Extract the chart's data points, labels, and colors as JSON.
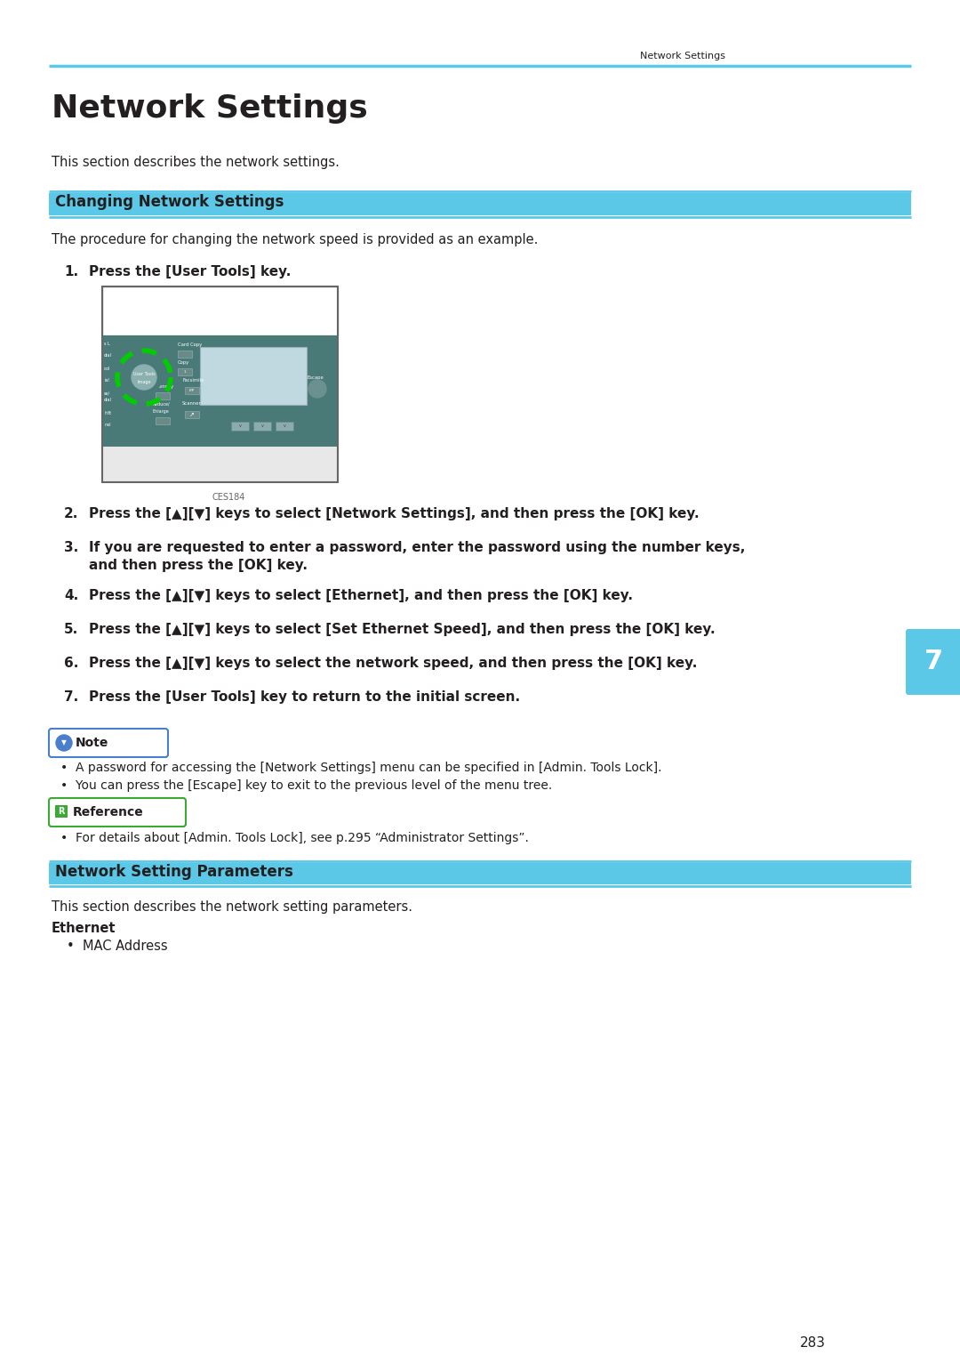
{
  "header_text": "Network Settings",
  "page_number": "283",
  "chapter_number": "7",
  "top_line_color": "#5bc8e8",
  "section1_title": "Changing Network Settings",
  "section1_intro": "The procedure for changing the network speed is provided as an example.",
  "step1": "Press the [User Tools] key.",
  "step2": "Press the [▲][▼] keys to select [Network Settings], and then press the [OK] key.",
  "step3_line1": "If you are requested to enter a password, enter the password using the number keys,",
  "step3_line2": "and then press the [OK] key.",
  "step4": "Press the [▲][▼] keys to select [Ethernet], and then press the [OK] key.",
  "step5": "Press the [▲][▼] keys to select [Set Ethernet Speed], and then press the [OK] key.",
  "step6": "Press the [▲][▼] keys to select the network speed, and then press the [OK] key.",
  "step7": "Press the [User Tools] key to return to the initial screen.",
  "note_label": "Note",
  "note_bullet1": "A password for accessing the [Network Settings] menu can be specified in [Admin. Tools Lock].",
  "note_bullet2": "You can press the [Escape] key to exit to the previous level of the menu tree.",
  "reference_label": "Reference",
  "ref_bullet1": "For details about [Admin. Tools Lock], see p.295 “Administrator Settings”.",
  "section2_title": "Network Setting Parameters",
  "section2_intro": "This section describes the network setting parameters.",
  "ethernet_label": "Ethernet",
  "ethernet_bullet1": "MAC Address",
  "bg_color": "#ffffff",
  "text_color": "#231f20",
  "cyan_color": "#5bc8e8",
  "note_border_color": "#4a7fcb",
  "ref_border_color": "#3aaa35",
  "chapter_tab_color": "#5bc8e8",
  "teal_color": "#4a7a78",
  "green_highlight": "#00cc00"
}
